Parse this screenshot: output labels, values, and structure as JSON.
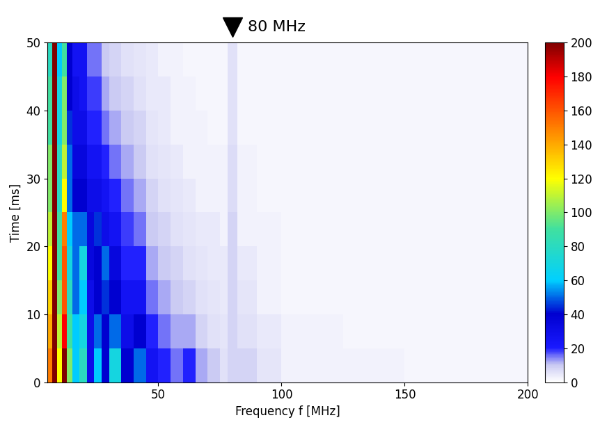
{
  "chart_data": {
    "type": "heatmap",
    "xlabel": "Frequency f [MHz]",
    "ylabel": "Time [ms]",
    "x_edges": [
      5,
      7,
      9,
      11,
      13,
      15,
      18,
      21,
      24,
      27,
      30,
      35,
      40,
      45,
      50,
      55,
      60,
      65,
      70,
      75,
      78,
      82,
      90,
      100,
      125,
      150,
      175,
      200
    ],
    "y_edges": [
      0,
      5,
      10,
      15,
      20,
      25,
      30,
      35,
      40,
      45,
      50
    ],
    "cells": [
      [
        150,
        200,
        120,
        200,
        100,
        60,
        80,
        30,
        60,
        40,
        70,
        40,
        50,
        25,
        20,
        15,
        20,
        12,
        10,
        6,
        8,
        8,
        5,
        3,
        3,
        2,
        2
      ],
      [
        140,
        200,
        110,
        180,
        90,
        60,
        70,
        30,
        50,
        40,
        50,
        30,
        40,
        20,
        15,
        12,
        12,
        8,
        6,
        5,
        8,
        6,
        4,
        3,
        2,
        2,
        2
      ],
      [
        130,
        200,
        100,
        160,
        80,
        50,
        60,
        30,
        40,
        45,
        40,
        25,
        25,
        15,
        12,
        10,
        8,
        6,
        5,
        4,
        8,
        5,
        3,
        2,
        2,
        2,
        2
      ],
      [
        120,
        200,
        90,
        160,
        70,
        50,
        70,
        35,
        40,
        50,
        35,
        20,
        20,
        12,
        10,
        8,
        6,
        5,
        4,
        4,
        8,
        4,
        3,
        2,
        2,
        2,
        2
      ],
      [
        110,
        200,
        90,
        150,
        60,
        50,
        50,
        35,
        45,
        30,
        25,
        18,
        15,
        10,
        8,
        6,
        5,
        4,
        4,
        3,
        8,
        3,
        3,
        2,
        2,
        2,
        2
      ],
      [
        100,
        200,
        80,
        120,
        50,
        40,
        40,
        30,
        30,
        25,
        20,
        15,
        12,
        8,
        6,
        5,
        4,
        3,
        3,
        3,
        7,
        3,
        2,
        2,
        2,
        2,
        2
      ],
      [
        100,
        200,
        80,
        110,
        50,
        35,
        35,
        25,
        25,
        20,
        15,
        12,
        10,
        6,
        5,
        4,
        3,
        3,
        3,
        3,
        7,
        3,
        2,
        2,
        2,
        2,
        2
      ],
      [
        90,
        200,
        70,
        100,
        45,
        30,
        30,
        20,
        20,
        15,
        12,
        10,
        8,
        5,
        4,
        3,
        3,
        3,
        2,
        2,
        6,
        2,
        2,
        2,
        2,
        2,
        2
      ],
      [
        90,
        200,
        70,
        100,
        40,
        30,
        25,
        18,
        18,
        12,
        10,
        8,
        6,
        4,
        4,
        3,
        3,
        2,
        2,
        2,
        6,
        2,
        2,
        2,
        2,
        2,
        2
      ],
      [
        80,
        200,
        60,
        90,
        40,
        25,
        25,
        15,
        15,
        10,
        8,
        6,
        5,
        4,
        3,
        3,
        2,
        2,
        2,
        2,
        6,
        2,
        2,
        2,
        2,
        2,
        2
      ]
    ],
    "xlim": [
      5,
      200
    ],
    "xticks": [
      50,
      100,
      150,
      200
    ],
    "ylim": [
      0,
      50
    ],
    "yticks": [
      0,
      10,
      20,
      30,
      40,
      50
    ],
    "colorbar_range": [
      0,
      200
    ],
    "colorbar_ticks": [
      0,
      20,
      40,
      60,
      80,
      100,
      120,
      140,
      160,
      180,
      200
    ],
    "annotations": [
      {
        "text": "80 MHz",
        "x": 80
      }
    ]
  }
}
